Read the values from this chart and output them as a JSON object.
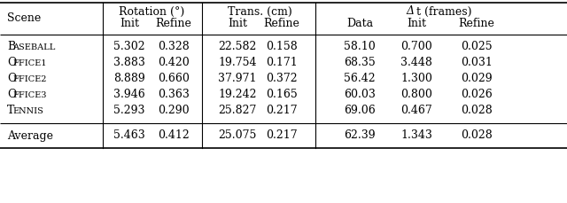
{
  "rows": [
    [
      "BASEBALL",
      "5.302",
      "0.328",
      "22.582",
      "0.158",
      "58.10",
      "0.700",
      "0.025"
    ],
    [
      "OFFICE1",
      "3.883",
      "0.420",
      "19.754",
      "0.171",
      "68.35",
      "3.448",
      "0.031"
    ],
    [
      "OFFICE2",
      "8.889",
      "0.660",
      "37.971",
      "0.372",
      "56.42",
      "1.300",
      "0.029"
    ],
    [
      "OFFICE3",
      "3.946",
      "0.363",
      "19.242",
      "0.165",
      "60.03",
      "0.800",
      "0.026"
    ],
    [
      "TENNIS",
      "5.293",
      "0.290",
      "25.827",
      "0.217",
      "69.06",
      "0.467",
      "0.028"
    ]
  ],
  "avg_row": [
    "Average",
    "5.463",
    "0.412",
    "25.075",
    "0.217",
    "62.39",
    "1.343",
    "0.028"
  ],
  "bg_color": "#ffffff",
  "text_color": "#000000",
  "font_size": 9.0
}
